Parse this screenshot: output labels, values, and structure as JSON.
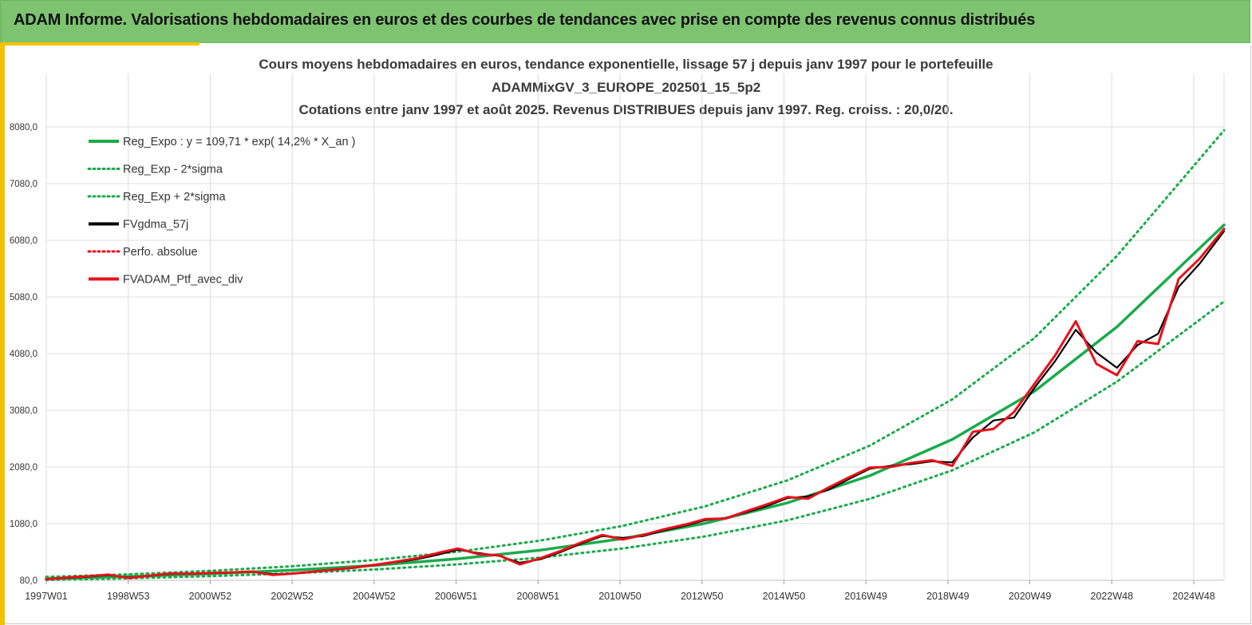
{
  "banner": {
    "title": "ADAM Informe. Valorisations hebdomadaires en euros et des courbes de tendances avec prise en compte des revenus connus distribués"
  },
  "colors": {
    "banner_bg": "#7dc370",
    "accent": "#f2c200",
    "trend": "#1aab4b",
    "smoothed": "#000000",
    "portfolio": "#e8101a"
  },
  "chart_data": {
    "type": "line",
    "title": "Cours moyens hebdomadaires  en euros, tendance exponentielle, lissage 57 j depuis janv 1997 pour le portefeuille",
    "subtitle": "ADAMMixGV_3_EUROPE_202501_15_5p2",
    "subtitle2": "Cotations  entre janv 1997 et août 2025. Revenus DISTRIBUES depuis janv 1997. Reg. croiss. : 20,0/20.",
    "xlabel": "",
    "ylabel": "",
    "xlim": [
      1997.0,
      2025.6
    ],
    "ylim": [
      80,
      8080
    ],
    "y_ticks": [
      "80,0",
      "1080,0",
      "2080,0",
      "3080,0",
      "4080,0",
      "5080,0",
      "6080,0",
      "7080,0",
      "8080,0"
    ],
    "x_ticks": [
      "1997W01",
      "1998W53",
      "2000W52",
      "2002W52",
      "2004W52",
      "2006W51",
      "2008W51",
      "2010W50",
      "2012W50",
      "2014W50",
      "2016W49",
      "2018W49",
      "2020W49",
      "2022W48",
      "2024W48"
    ],
    "grid": true,
    "legend_position": "top-left",
    "legend": [
      {
        "label": "Reg_Expo : y = 109,71 * exp( 14,2% *  X_an )",
        "style": "solid",
        "color": "#1aab4b"
      },
      {
        "label": "Reg_Exp - 2*sigma",
        "style": "dotted",
        "color": "#1aab4b"
      },
      {
        "label": "Reg_Exp + 2*sigma",
        "style": "dotted",
        "color": "#1aab4b"
      },
      {
        "label": "FVgdma_57j",
        "style": "solid",
        "color": "#000000"
      },
      {
        "label": "Perfo. absolue",
        "style": "dotted",
        "color": "#e8101a"
      },
      {
        "label": "FVADAM_Ptf_avec_div",
        "style": "solid",
        "color": "#e8101a"
      }
    ],
    "series": [
      {
        "name": "Reg_Expo : y = 109,71 * exp( 14,2% *  X_an )",
        "x": [
          1997,
          1999,
          2001,
          2003,
          2005,
          2007,
          2009,
          2011,
          2013,
          2015,
          2017,
          2019,
          2021,
          2023,
          2025.6
        ],
        "values": [
          110,
          146,
          195,
          259,
          345,
          460,
          612,
          815,
          1086,
          1447,
          1927,
          2566,
          3418,
          4552,
          6350
        ]
      },
      {
        "name": "Reg_Exp - 2*sigma",
        "x": [
          1997,
          1999,
          2001,
          2003,
          2005,
          2007,
          2009,
          2011,
          2013,
          2015,
          2017,
          2019,
          2021,
          2023,
          2025.6
        ],
        "values": [
          86,
          115,
          153,
          204,
          272,
          362,
          482,
          642,
          855,
          1139,
          1518,
          2021,
          2692,
          3585,
          5000
        ]
      },
      {
        "name": "Reg_Exp + 2*sigma",
        "x": [
          1997,
          1999,
          2001,
          2003,
          2005,
          2007,
          2009,
          2011,
          2013,
          2015,
          2017,
          2019,
          2021,
          2023,
          2025.6
        ],
        "values": [
          140,
          186,
          248,
          330,
          440,
          586,
          781,
          1040,
          1385,
          1845,
          2457,
          3273,
          4359,
          5806,
          8020
        ]
      },
      {
        "name": "FVgdma_57j",
        "x": [
          1997,
          1997.5,
          1998,
          1998.5,
          1999,
          1999.5,
          2000,
          2000.5,
          2001,
          2001.5,
          2002,
          2002.5,
          2003,
          2003.5,
          2004,
          2004.5,
          2005,
          2005.5,
          2006,
          2006.5,
          2007,
          2007.5,
          2008,
          2008.5,
          2009,
          2009.5,
          2010,
          2010.5,
          2011,
          2011.5,
          2012,
          2012.5,
          2013,
          2013.5,
          2014,
          2014.5,
          2015,
          2015.5,
          2016,
          2016.5,
          2017,
          2017.5,
          2018,
          2018.5,
          2019,
          2019.5,
          2020,
          2020.5,
          2021,
          2021.5,
          2022,
          2022.5,
          2023,
          2023.5,
          2024,
          2024.5,
          2025,
          2025.6
        ],
        "values": [
          100,
          120,
          140,
          170,
          130,
          155,
          190,
          200,
          205,
          215,
          230,
          190,
          195,
          230,
          265,
          300,
          350,
          400,
          450,
          530,
          620,
          560,
          510,
          390,
          450,
          580,
          730,
          860,
          830,
          860,
          960,
          1040,
          1140,
          1180,
          1280,
          1390,
          1530,
          1560,
          1680,
          1870,
          2050,
          2100,
          2130,
          2180,
          2160,
          2600,
          2900,
          2950,
          3480,
          3950,
          4500,
          4100,
          3830,
          4230,
          4430,
          5260,
          5660,
          6240
        ]
      },
      {
        "name": "FVADAM_Ptf_avec_div",
        "x": [
          1997,
          1997.5,
          1998,
          1998.5,
          1999,
          1999.5,
          2000,
          2000.5,
          2001,
          2001.5,
          2002,
          2002.5,
          2003,
          2003.5,
          2004,
          2004.5,
          2005,
          2005.5,
          2006,
          2006.5,
          2007,
          2007.5,
          2008,
          2008.5,
          2009,
          2009.5,
          2010,
          2010.5,
          2011,
          2011.5,
          2012,
          2012.5,
          2013,
          2013.5,
          2014,
          2014.5,
          2015,
          2015.5,
          2016,
          2016.5,
          2017,
          2017.5,
          2018,
          2018.5,
          2019,
          2019.5,
          2020,
          2020.5,
          2021,
          2021.5,
          2022,
          2022.5,
          2023,
          2023.5,
          2024,
          2024.5,
          2025,
          2025.6
        ],
        "values": [
          100,
          130,
          150,
          180,
          120,
          160,
          200,
          195,
          210,
          220,
          235,
          175,
          200,
          235,
          270,
          310,
          355,
          410,
          470,
          560,
          640,
          540,
          520,
          360,
          470,
          600,
          750,
          880,
          800,
          880,
          980,
          1060,
          1160,
          1170,
          1300,
          1420,
          1550,
          1520,
          1720,
          1900,
          2070,
          2080,
          2150,
          2200,
          2100,
          2700,
          2750,
          3050,
          3550,
          4050,
          4650,
          3900,
          3700,
          4300,
          4250,
          5400,
          5750,
          6280
        ]
      }
    ]
  }
}
